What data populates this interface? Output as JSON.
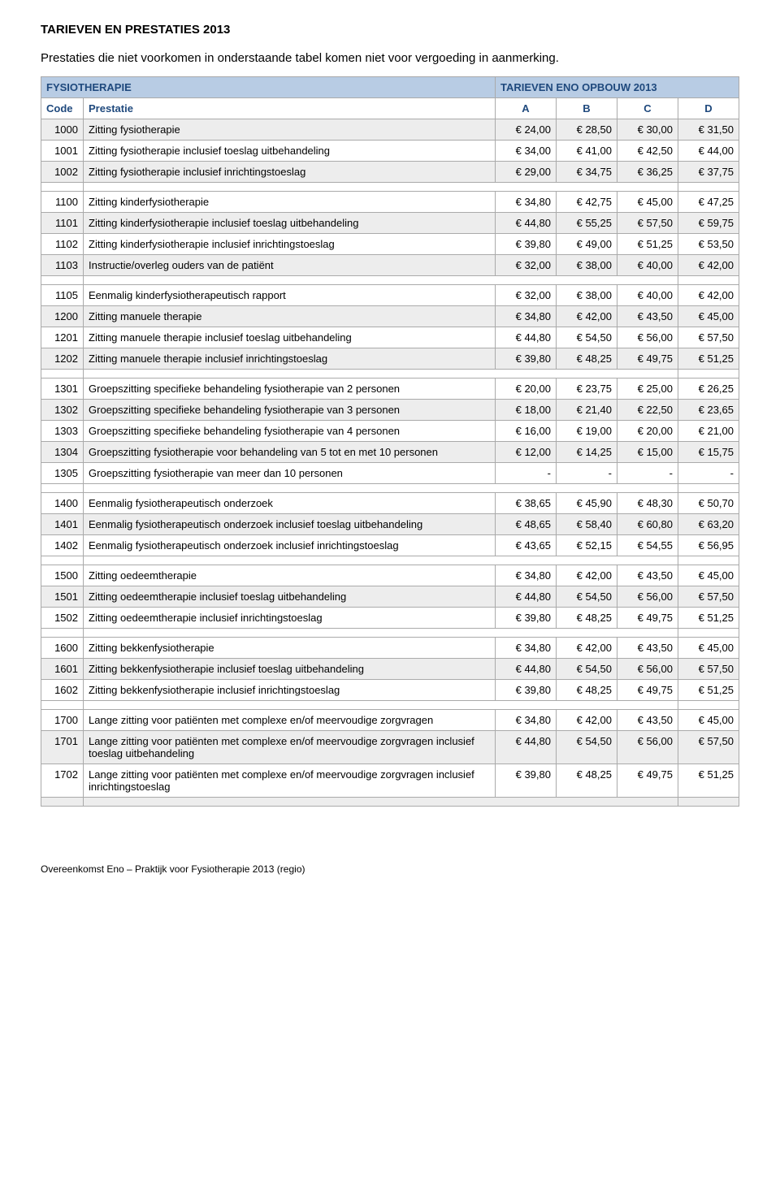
{
  "title": "TARIEVEN EN PRESTATIES 2013",
  "note": "Prestaties die niet voorkomen in onderstaande tabel komen niet voor vergoeding in aanmerking.",
  "section_header": {
    "left": "FYSIOTHERAPIE",
    "right": "TARIEVEN ENO OPBOUW 2013"
  },
  "columns": {
    "code": "Code",
    "prest": "Prestatie",
    "a": "A",
    "b": "B",
    "c": "C",
    "d": "D"
  },
  "rows": [
    {
      "type": "row",
      "shade": true,
      "code": "1000",
      "prest": "Zitting fysiotherapie",
      "a": "€ 24,00",
      "b": "€ 28,50",
      "c": "€ 30,00",
      "d": "€ 31,50"
    },
    {
      "type": "row",
      "shade": false,
      "code": "1001",
      "prest": "Zitting fysiotherapie inclusief toeslag uitbehandeling",
      "a": "€ 34,00",
      "b": "€ 41,00",
      "c": "€ 42,50",
      "d": "€ 44,00"
    },
    {
      "type": "row",
      "shade": true,
      "code": "1002",
      "prest": "Zitting fysiotherapie inclusief inrichtingstoeslag",
      "a": "€ 29,00",
      "b": "€ 34,75",
      "c": "€ 36,25",
      "d": "€ 37,75"
    },
    {
      "type": "blank"
    },
    {
      "type": "row",
      "shade": false,
      "code": "1100",
      "prest": "Zitting kinderfysiotherapie",
      "a": "€ 34,80",
      "b": "€ 42,75",
      "c": "€ 45,00",
      "d": "€ 47,25"
    },
    {
      "type": "row",
      "shade": true,
      "code": "1101",
      "prest": "Zitting kinderfysiotherapie inclusief toeslag uitbehandeling",
      "a": "€ 44,80",
      "b": "€ 55,25",
      "c": "€ 57,50",
      "d": "€ 59,75"
    },
    {
      "type": "row",
      "shade": false,
      "code": "1102",
      "prest": "Zitting kinderfysiotherapie inclusief inrichtingstoeslag",
      "a": "€ 39,80",
      "b": "€ 49,00",
      "c": "€ 51,25",
      "d": "€ 53,50"
    },
    {
      "type": "row",
      "shade": true,
      "code": "1103",
      "prest": "Instructie/overleg ouders van de patiënt",
      "a": "€ 32,00",
      "b": "€ 38,00",
      "c": "€ 40,00",
      "d": "€ 42,00"
    },
    {
      "type": "blank"
    },
    {
      "type": "row",
      "shade": false,
      "code": "1105",
      "prest": "Eenmalig kinderfysiotherapeutisch rapport",
      "a": "€ 32,00",
      "b": "€ 38,00",
      "c": "€ 40,00",
      "d": "€ 42,00"
    },
    {
      "type": "row",
      "shade": true,
      "code": "1200",
      "prest": "Zitting manuele therapie",
      "a": "€ 34,80",
      "b": "€ 42,00",
      "c": "€ 43,50",
      "d": "€ 45,00"
    },
    {
      "type": "row",
      "shade": false,
      "code": "1201",
      "prest": "Zitting manuele therapie inclusief toeslag uitbehandeling",
      "a": "€ 44,80",
      "b": "€ 54,50",
      "c": "€ 56,00",
      "d": "€ 57,50"
    },
    {
      "type": "row",
      "shade": true,
      "code": "1202",
      "prest": "Zitting manuele therapie inclusief inrichtingstoeslag",
      "a": "€ 39,80",
      "b": "€ 48,25",
      "c": "€ 49,75",
      "d": "€ 51,25"
    },
    {
      "type": "blank"
    },
    {
      "type": "row",
      "shade": false,
      "code": "1301",
      "prest": "Groepszitting specifieke behandeling fysiotherapie van 2 personen",
      "a": "€ 20,00",
      "b": "€ 23,75",
      "c": "€ 25,00",
      "d": "€ 26,25"
    },
    {
      "type": "row",
      "shade": true,
      "code": "1302",
      "prest": "Groepszitting specifieke behandeling fysiotherapie van 3 personen",
      "a": "€ 18,00",
      "b": "€ 21,40",
      "c": "€ 22,50",
      "d": "€ 23,65"
    },
    {
      "type": "row",
      "shade": false,
      "code": "1303",
      "prest": "Groepszitting specifieke behandeling fysiotherapie van 4 personen",
      "a": "€ 16,00",
      "b": "€ 19,00",
      "c": "€ 20,00",
      "d": "€ 21,00"
    },
    {
      "type": "row",
      "shade": true,
      "code": "1304",
      "prest": "Groepszitting fysiotherapie voor behandeling van 5 tot en met 10 personen",
      "a": "€ 12,00",
      "b": "€ 14,25",
      "c": "€ 15,00",
      "d": "€ 15,75"
    },
    {
      "type": "row",
      "shade": false,
      "code": "1305",
      "prest": "Groepszitting fysiotherapie van meer dan 10 personen",
      "a": "-",
      "b": "-",
      "c": "-",
      "d": "-"
    },
    {
      "type": "blank"
    },
    {
      "type": "row",
      "shade": false,
      "code": "1400",
      "prest": "Eenmalig fysiotherapeutisch onderzoek",
      "a": "€ 38,65",
      "b": "€ 45,90",
      "c": "€ 48,30",
      "d": "€ 50,70"
    },
    {
      "type": "row",
      "shade": true,
      "code": "1401",
      "prest": "Eenmalig fysiotherapeutisch onderzoek inclusief toeslag uitbehandeling",
      "a": "€ 48,65",
      "b": "€ 58,40",
      "c": "€ 60,80",
      "d": "€ 63,20"
    },
    {
      "type": "row",
      "shade": false,
      "code": "1402",
      "prest": "Eenmalig fysiotherapeutisch onderzoek inclusief inrichtingstoeslag",
      "a": "€ 43,65",
      "b": "€ 52,15",
      "c": "€ 54,55",
      "d": "€ 56,95"
    },
    {
      "type": "blank"
    },
    {
      "type": "row",
      "shade": false,
      "code": "1500",
      "prest": "Zitting oedeemtherapie",
      "a": "€ 34,80",
      "b": "€ 42,00",
      "c": "€ 43,50",
      "d": "€ 45,00"
    },
    {
      "type": "row",
      "shade": true,
      "code": "1501",
      "prest": "Zitting oedeemtherapie inclusief toeslag uitbehandeling",
      "a": "€ 44,80",
      "b": "€ 54,50",
      "c": "€ 56,00",
      "d": "€ 57,50"
    },
    {
      "type": "row",
      "shade": false,
      "code": "1502",
      "prest": "Zitting oedeemtherapie inclusief inrichtingstoeslag",
      "a": "€ 39,80",
      "b": "€ 48,25",
      "c": "€ 49,75",
      "d": "€ 51,25"
    },
    {
      "type": "blank"
    },
    {
      "type": "row",
      "shade": false,
      "code": "1600",
      "prest": "Zitting bekkenfysiotherapie",
      "a": "€ 34,80",
      "b": "€ 42,00",
      "c": "€ 43,50",
      "d": "€ 45,00"
    },
    {
      "type": "row",
      "shade": true,
      "code": "1601",
      "prest": "Zitting bekkenfysiotherapie inclusief toeslag uitbehandeling",
      "a": "€ 44,80",
      "b": "€ 54,50",
      "c": "€ 56,00",
      "d": "€ 57,50"
    },
    {
      "type": "row",
      "shade": false,
      "code": "1602",
      "prest": "Zitting bekkenfysiotherapie inclusief inrichtingstoeslag",
      "a": "€ 39,80",
      "b": "€ 48,25",
      "c": "€ 49,75",
      "d": "€ 51,25"
    },
    {
      "type": "blank"
    },
    {
      "type": "row",
      "shade": false,
      "code": "1700",
      "prest": "Lange zitting voor patiënten met complexe en/of meervoudige zorgvragen",
      "a": "€ 34,80",
      "b": "€ 42,00",
      "c": "€ 43,50",
      "d": "€ 45,00"
    },
    {
      "type": "row",
      "shade": true,
      "code": "1701",
      "prest": "Lange zitting voor patiënten met complexe en/of meervoudige zorgvragen inclusief toeslag uitbehandeling",
      "a": "€ 44,80",
      "b": "€ 54,50",
      "c": "€ 56,00",
      "d": "€ 57,50"
    },
    {
      "type": "row",
      "shade": false,
      "code": "1702",
      "prest": "Lange zitting voor patiënten met complexe en/of meervoudige zorgvragen inclusief inrichtingstoeslag",
      "a": "€ 39,80",
      "b": "€ 48,25",
      "c": "€ 49,75",
      "d": "€ 51,25"
    },
    {
      "type": "blank",
      "shade": true
    }
  ],
  "footer": "Overeenkomst Eno – Praktijk voor Fysiotherapie 2013 (regio)"
}
